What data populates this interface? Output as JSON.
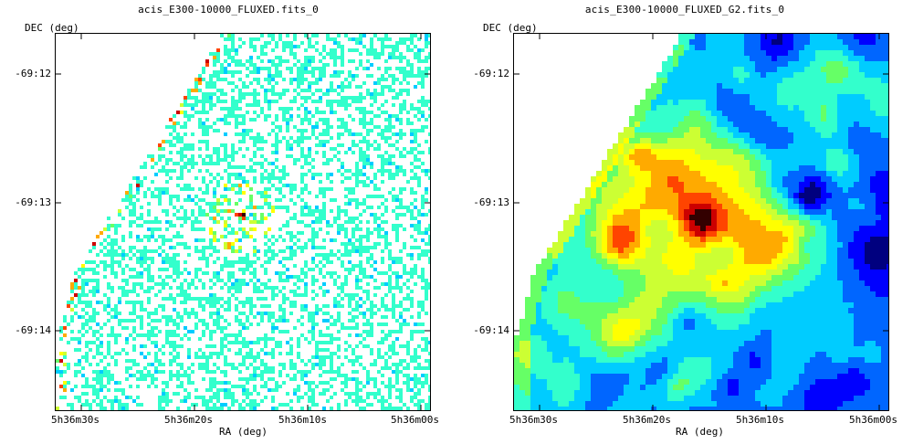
{
  "panels": [
    {
      "title": "acis_E300-10000_FLUXED.fits_0",
      "ylabel": "DEC (deg)",
      "xlabel": "RA (deg)",
      "yticks": [
        "-69:12",
        "-69:13",
        "-69:14"
      ],
      "xticks": [
        "5h36m30s",
        "5h36m20s",
        "5h36m10s",
        "5h36m00s"
      ],
      "style": "sparse-counts"
    },
    {
      "title": "acis_E300-10000_FLUXED_G2.fits_0",
      "ylabel": "DEC (deg)",
      "xlabel": "RA (deg)",
      "yticks": [
        "-69:12",
        "-69:13",
        "-69:14"
      ],
      "xticks": [
        "5h36m30s",
        "5h36m20s",
        "5h36m10s",
        "5h36m00s"
      ],
      "style": "smoothed"
    }
  ],
  "colormap": [
    "#00007f",
    "#0000ff",
    "#0066ff",
    "#00ccff",
    "#33ffcc",
    "#66ff66",
    "#ccff33",
    "#ffff00",
    "#ffaa00",
    "#ff4400",
    "#cc0000",
    "#330000"
  ]
}
